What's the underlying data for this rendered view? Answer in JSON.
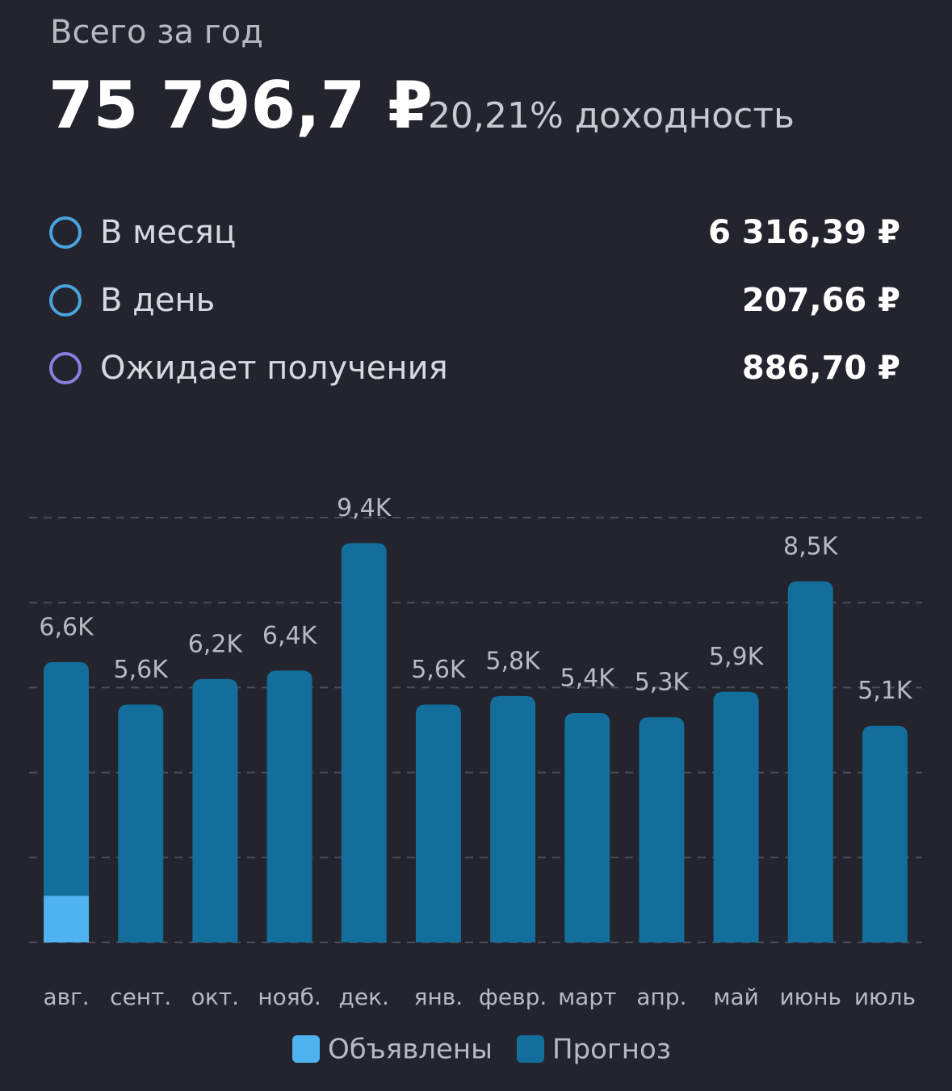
{
  "header": {
    "title": "Всего за год",
    "total": "75 796,7 ₽",
    "yield": "20,21% доходность"
  },
  "stats": [
    {
      "label": "В месяц",
      "value": "6 316,39 ₽",
      "color": "#4aa3df"
    },
    {
      "label": "В день",
      "value": "207,66 ₽",
      "color": "#4aa3df"
    },
    {
      "label": "Ожидает получения",
      "value": "886,70 ₽",
      "color": "#8a7fe0"
    }
  ],
  "chart_data": {
    "type": "stacked_bar",
    "categories": [
      "авг.",
      "сент.",
      "окт.",
      "нояб.",
      "дек.",
      "янв.",
      "февр.",
      "март",
      "апр.",
      "май",
      "июнь",
      "июль"
    ],
    "series": [
      {
        "name": "Объявлены",
        "color": "#4fb3f0",
        "values": [
          1100,
          0,
          0,
          0,
          0,
          0,
          0,
          0,
          0,
          0,
          0,
          0
        ]
      },
      {
        "name": "Прогноз",
        "color": "#136e9b",
        "values": [
          5500,
          5600,
          6200,
          6400,
          9400,
          5600,
          5800,
          5400,
          5300,
          5900,
          8500,
          5100
        ]
      }
    ],
    "totals": [
      6600,
      5600,
      6200,
      6400,
      9400,
      5600,
      5800,
      5400,
      5300,
      5900,
      8500,
      5100
    ],
    "total_labels": [
      "6,6K",
      "5,6K",
      "6,2K",
      "6,4K",
      "9,4K",
      "5,6K",
      "5,8K",
      "5,4K",
      "5,3K",
      "5,9K",
      "8,5K",
      "5,1K"
    ],
    "ylim": [
      0,
      10000
    ],
    "yticks": [
      0,
      2000,
      4000,
      6000,
      8000,
      10000
    ],
    "grid": true
  }
}
